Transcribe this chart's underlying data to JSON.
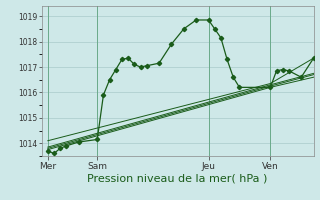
{
  "bg_color": "#cee8e8",
  "grid_color": "#b0d0d0",
  "line_color": "#1a5c1a",
  "title": "Pression niveau de la mer( hPa )",
  "title_fontsize": 8,
  "ylim": [
    1013.5,
    1019.4
  ],
  "yticks": [
    1014,
    1015,
    1016,
    1017,
    1018,
    1019
  ],
  "day_labels": [
    "Mer",
    "Sam",
    "Jeu",
    "Ven"
  ],
  "day_positions": [
    0,
    8,
    26,
    36
  ],
  "xlim": [
    -1,
    43
  ],
  "series1_x": [
    0,
    1,
    2,
    3,
    5,
    8,
    9,
    10,
    11,
    12,
    13,
    14,
    15,
    16,
    18,
    20,
    22,
    24,
    26,
    27,
    28,
    29,
    30,
    31,
    36,
    37,
    38,
    39,
    41,
    43
  ],
  "series1_y": [
    1013.7,
    1013.6,
    1013.8,
    1013.9,
    1014.05,
    1014.15,
    1015.9,
    1016.5,
    1016.9,
    1017.3,
    1017.35,
    1017.1,
    1017.0,
    1017.05,
    1017.15,
    1017.9,
    1018.5,
    1018.85,
    1018.85,
    1018.5,
    1018.15,
    1017.3,
    1016.6,
    1016.2,
    1016.2,
    1016.85,
    1016.9,
    1016.85,
    1016.6,
    1017.35
  ],
  "series2_x": [
    0,
    36,
    43
  ],
  "series2_y": [
    1013.75,
    1016.2,
    1016.6
  ],
  "series3_x": [
    0,
    36,
    43
  ],
  "series3_y": [
    1013.8,
    1016.25,
    1016.7
  ],
  "series4_x": [
    0,
    36,
    43
  ],
  "series4_y": [
    1013.85,
    1016.3,
    1016.75
  ],
  "series5_x": [
    0,
    36,
    43
  ],
  "series5_y": [
    1014.1,
    1016.35,
    1017.35
  ],
  "marker_size": 2.2,
  "lw_main": 0.9,
  "lw_thin": 0.7
}
